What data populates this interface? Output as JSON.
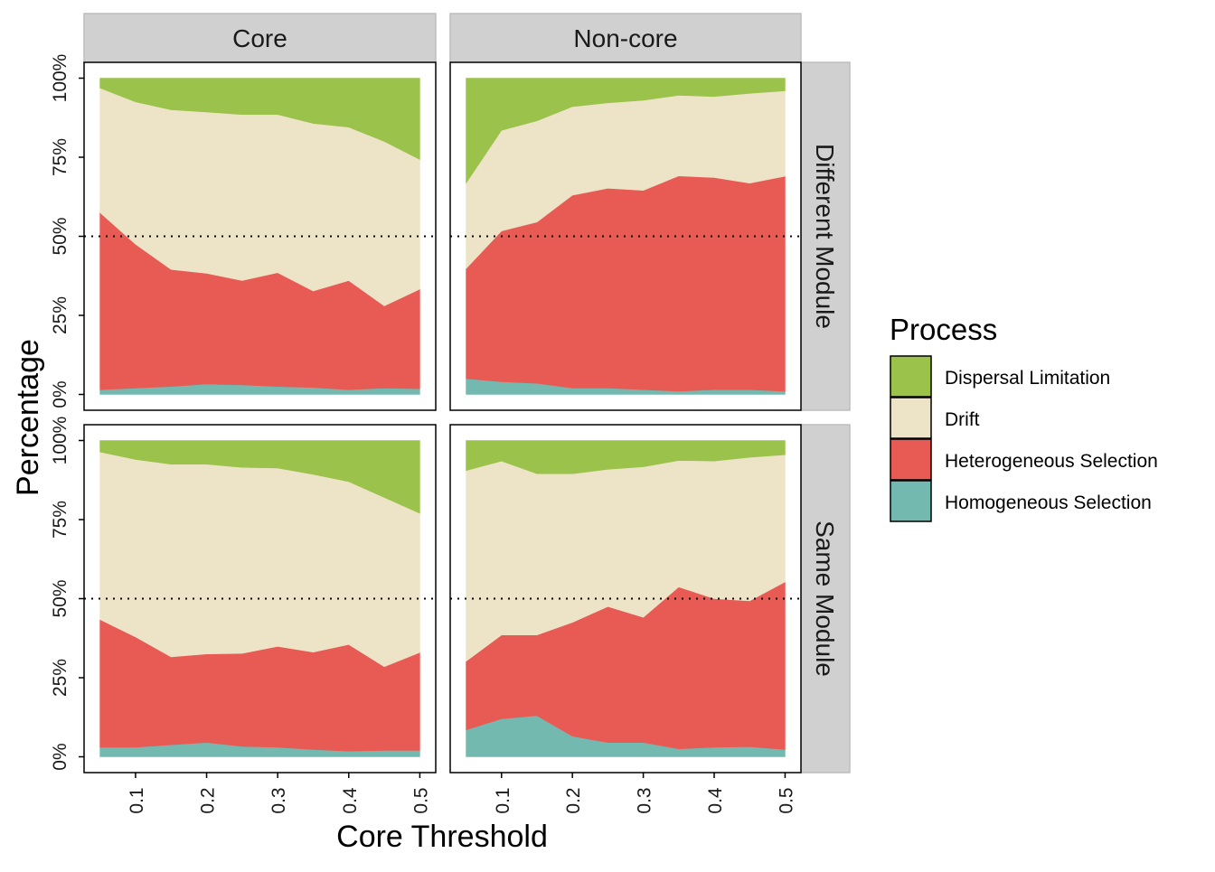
{
  "chart_data": {
    "type": "area",
    "stacked": true,
    "xlabel": "Core Threshold",
    "ylabel": "Percentage",
    "x": [
      0.05,
      0.1,
      0.15,
      0.2,
      0.25,
      0.3,
      0.35,
      0.4,
      0.45,
      0.5
    ],
    "x_ticks": [
      "0.1",
      "0.2",
      "0.3",
      "0.4",
      "0.5"
    ],
    "x_tick_values": [
      0.1,
      0.2,
      0.3,
      0.4,
      0.5
    ],
    "xlim": [
      0.0276,
      0.5224
    ],
    "y_ticks": [
      "0%",
      "25%",
      "50%",
      "75%",
      "100%"
    ],
    "y_tick_values": [
      0,
      25,
      50,
      75,
      100
    ],
    "ylim": [
      -5,
      105
    ],
    "reference_line": 50,
    "grid": false,
    "legend_title": "Process",
    "legend_position": "right",
    "column_facets": [
      "Core",
      "Non-core"
    ],
    "row_facets": [
      "Different Module",
      "Same Module"
    ],
    "series_order": [
      "Homogeneous Selection",
      "Heterogeneous Selection",
      "Drift",
      "Dispersal Limitation"
    ],
    "legend": [
      {
        "name": "Dispersal Limitation",
        "color": "#9bc24a"
      },
      {
        "name": "Drift",
        "color": "#ede3c6"
      },
      {
        "name": "Heterogeneous Selection",
        "color": "#e85b55"
      },
      {
        "name": "Homogeneous Selection",
        "color": "#74b9b0"
      }
    ],
    "panels": [
      {
        "column": "Core",
        "row": "Different Module",
        "series": [
          {
            "name": "Homogeneous Selection",
            "values": [
              1.5,
              2,
              2.5,
              3.3,
              3,
              2.5,
              2.2,
              1.5,
              2,
              1.8
            ]
          },
          {
            "name": "Heterogeneous Selection",
            "values": [
              56,
              45.5,
              37,
              35,
              33,
              36,
              30.5,
              34.5,
              26,
              31.5
            ]
          },
          {
            "name": "Drift",
            "values": [
              39.4,
              45,
              50.5,
              51,
              52.5,
              50,
              53,
              48.5,
              52,
              41
            ]
          },
          {
            "name": "Dispersal Limitation",
            "values": [
              3.1,
              7.5,
              10,
              10.7,
              11.5,
              11.5,
              14.3,
              15.5,
              20,
              25.7
            ]
          }
        ]
      },
      {
        "column": "Non-core",
        "row": "Different Module",
        "series": [
          {
            "name": "Homogeneous Selection",
            "values": [
              5,
              4,
              3.5,
              2,
              2,
              1.5,
              1,
              1.5,
              1.5,
              1
            ]
          },
          {
            "name": "Heterogeneous Selection",
            "values": [
              34.8,
              47.7,
              51,
              61,
              63.2,
              63,
              68.1,
              67.1,
              65.3,
              68
            ]
          },
          {
            "name": "Drift",
            "values": [
              27,
              31.8,
              32,
              28,
              27,
              28.5,
              25.5,
              25.6,
              28.4,
              27
            ]
          },
          {
            "name": "Dispersal Limitation",
            "values": [
              33.2,
              16.5,
              13.5,
              9,
              7.8,
              7,
              5.4,
              5.8,
              4.8,
              4
            ]
          }
        ]
      },
      {
        "column": "Core",
        "row": "Same Module",
        "series": [
          {
            "name": "Homogeneous Selection",
            "values": [
              3,
              3,
              3.8,
              4.5,
              3.3,
              3,
              2.3,
              1.8,
              2,
              2
            ]
          },
          {
            "name": "Heterogeneous Selection",
            "values": [
              40.4,
              34.9,
              27.8,
              28,
              29.4,
              31.9,
              30.8,
              33.7,
              26.5,
              31
            ]
          },
          {
            "name": "Drift",
            "values": [
              53,
              56.1,
              60.9,
              60,
              58.8,
              56.4,
              56.2,
              51.5,
              53.5,
              44
            ]
          },
          {
            "name": "Dispersal Limitation",
            "values": [
              3.6,
              6,
              7.5,
              7.5,
              8.5,
              8.7,
              10.7,
              13,
              18,
              23
            ]
          }
        ]
      },
      {
        "column": "Non-core",
        "row": "Same Module",
        "series": [
          {
            "name": "Homogeneous Selection",
            "values": [
              8.5,
              12,
              13,
              6.5,
              4.5,
              4.5,
              2.5,
              3,
              3.2,
              2.3
            ]
          },
          {
            "name": "Heterogeneous Selection",
            "values": [
              21.7,
              26.5,
              25.5,
              36,
              43,
              39.6,
              51.2,
              47,
              46.1,
              53
            ]
          },
          {
            "name": "Drift",
            "values": [
              60.3,
              55,
              51,
              47,
              43.4,
              47.6,
              40,
              43.5,
              45.4,
              40.2
            ]
          },
          {
            "name": "Dispersal Limitation",
            "values": [
              9.5,
              6.5,
              10.5,
              10.5,
              9.1,
              8.3,
              6.3,
              6.5,
              5.3,
              4.5
            ]
          }
        ]
      }
    ]
  }
}
